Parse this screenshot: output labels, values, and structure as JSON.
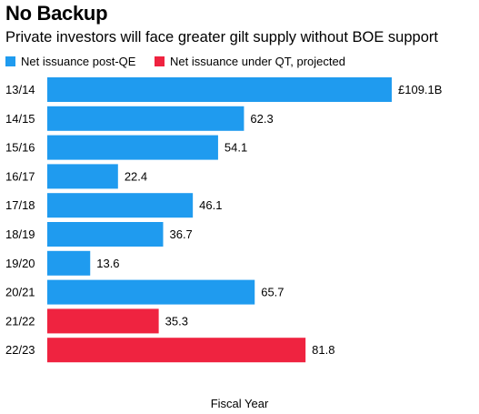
{
  "chart_data": {
    "type": "bar",
    "orientation": "horizontal",
    "title": "No Backup",
    "subtitle": "Private investors will face greater gilt supply without BOE support",
    "xlabel": "Fiscal Year",
    "ylabel": "",
    "categories": [
      "13/14",
      "14/15",
      "15/16",
      "16/17",
      "17/18",
      "18/19",
      "19/20",
      "20/21",
      "21/22",
      "22/23"
    ],
    "values": [
      109.1,
      62.3,
      54.1,
      22.4,
      46.1,
      36.7,
      13.6,
      65.7,
      35.3,
      81.8
    ],
    "value_labels": [
      "£109.1B",
      "62.3",
      "54.1",
      "22.4",
      "46.1",
      "36.7",
      "13.6",
      "65.7",
      "35.3",
      "81.8"
    ],
    "series_index": [
      0,
      0,
      0,
      0,
      0,
      0,
      0,
      0,
      1,
      1
    ],
    "series": [
      {
        "name": "Net issuance post-QE",
        "color": "#1f9bef"
      },
      {
        "name": "Net issuance under QT, projected",
        "color": "#ef2340"
      }
    ],
    "xlim": [
      0,
      109.1
    ],
    "grid": false,
    "legend_position": "top-left"
  }
}
